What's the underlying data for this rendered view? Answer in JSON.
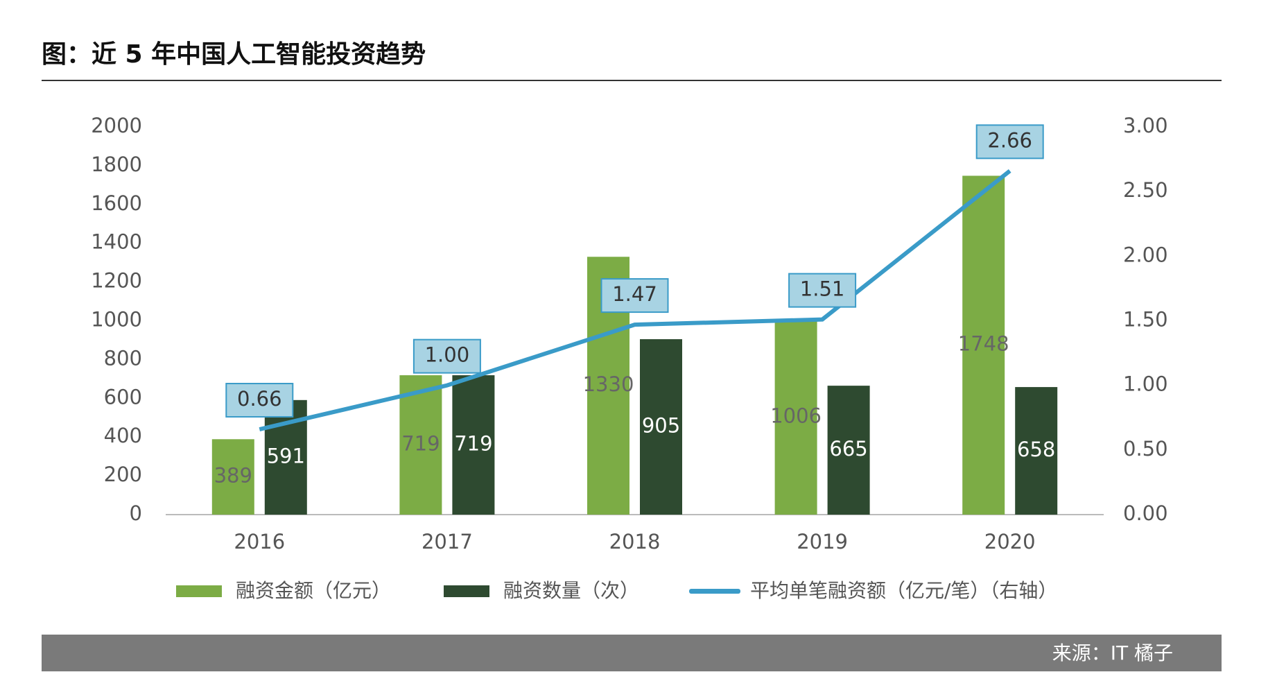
{
  "chart_data": {
    "type": "bar",
    "title": "图：近 5 年中国人工智能投资趋势",
    "categories": [
      "2016",
      "2017",
      "2018",
      "2019",
      "2020"
    ],
    "series": [
      {
        "name": "融资金额（亿元）",
        "color": "#7cac45",
        "values": [
          389,
          719,
          1330,
          1006,
          1748
        ]
      },
      {
        "name": "融资数量（次）",
        "color": "#2e4a30",
        "values": [
          591,
          719,
          905,
          665,
          658
        ]
      },
      {
        "name": "平均单笔融资额（亿元/笔）（右轴）",
        "color": "#3a9bc8",
        "type": "line",
        "axis": "y2",
        "values": [
          0.66,
          1.0,
          1.47,
          1.51,
          2.66
        ],
        "value_labels": [
          "0.66",
          "1.00",
          "1.47",
          "1.51",
          "2.66"
        ]
      }
    ],
    "ylim": [
      0,
      2000
    ],
    "yticks": [
      0,
      200,
      400,
      600,
      800,
      1000,
      1200,
      1400,
      1600,
      1800,
      2000
    ],
    "y2lim": [
      0,
      3
    ],
    "y2ticks": [
      {
        "value": 0,
        "label": "0.00"
      },
      {
        "value": 0.5,
        "label": "0.50"
      },
      {
        "value": 1,
        "label": "1.00"
      },
      {
        "value": 1.5,
        "label": "1.50"
      },
      {
        "value": 2,
        "label": "2.00"
      },
      {
        "value": 2.5,
        "label": "2.50"
      },
      {
        "value": 3,
        "label": "3.00"
      }
    ],
    "grid": false,
    "legend": "bottom",
    "source": "来源：IT 橘子"
  }
}
